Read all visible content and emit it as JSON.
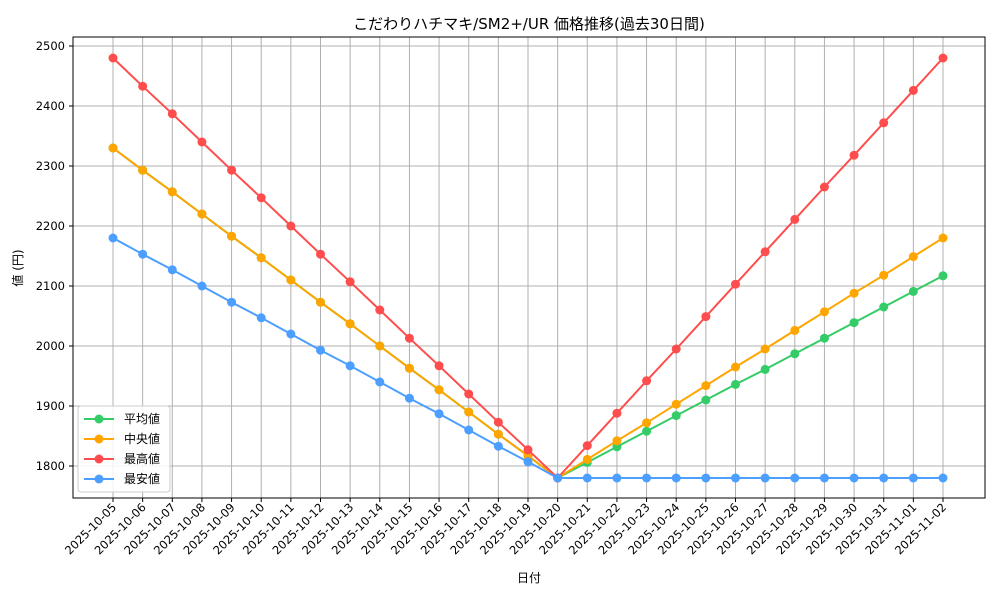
{
  "chart_data": {
    "type": "line",
    "title": "こだわりハチマキ/SM2+/UR 価格推移(過去30日間)",
    "xlabel": "日付",
    "ylabel": "値 (円)",
    "ylim": [
      1748,
      2517
    ],
    "yticks": [
      1800,
      1900,
      2000,
      2100,
      2200,
      2300,
      2400,
      2500
    ],
    "grid": true,
    "legend_position": "lower left",
    "x": [
      "2025-10-05",
      "2025-10-06",
      "2025-10-07",
      "2025-10-08",
      "2025-10-09",
      "2025-10-10",
      "2025-10-11",
      "2025-10-12",
      "2025-10-13",
      "2025-10-14",
      "2025-10-15",
      "2025-10-16",
      "2025-10-17",
      "2025-10-18",
      "2025-10-19",
      "2025-10-20",
      "2025-10-21",
      "2025-10-22",
      "2025-10-23",
      "2025-10-24",
      "2025-10-25",
      "2025-10-26",
      "2025-10-27",
      "2025-10-28",
      "2025-10-29",
      "2025-10-30",
      "2025-10-31",
      "2025-11-01",
      "2025-11-02"
    ],
    "series": [
      {
        "name": "平均値",
        "color": "#33cc66",
        "values": [
          2330,
          2293,
          2257,
          2220,
          2183,
          2147,
          2110,
          2073,
          2037,
          2000,
          1963,
          1927,
          1890,
          1853,
          1817,
          1780,
          1806,
          1832,
          1858,
          1884,
          1910,
          1936,
          1961,
          1987,
          2013,
          2039,
          2065,
          2091,
          2117
        ]
      },
      {
        "name": "中央値",
        "color": "#ffa500",
        "values": [
          2330,
          2293,
          2257,
          2220,
          2183,
          2147,
          2110,
          2073,
          2037,
          2000,
          1963,
          1927,
          1890,
          1853,
          1817,
          1780,
          1811,
          1842,
          1872,
          1903,
          1934,
          1965,
          1995,
          2026,
          2057,
          2088,
          2118,
          2149,
          2180
        ]
      },
      {
        "name": "最高値",
        "color": "#ff4d4d",
        "values": [
          2480,
          2433,
          2387,
          2340,
          2293,
          2247,
          2200,
          2153,
          2107,
          2060,
          2013,
          1967,
          1920,
          1873,
          1827,
          1780,
          1834,
          1888,
          1942,
          1995,
          2049,
          2103,
          2157,
          2211,
          2265,
          2318,
          2372,
          2426,
          2480
        ]
      },
      {
        "name": "最安値",
        "color": "#4d9fff",
        "values": [
          2180,
          2153,
          2127,
          2100,
          2073,
          2047,
          2020,
          1993,
          1967,
          1940,
          1913,
          1887,
          1860,
          1833,
          1807,
          1780,
          1780,
          1780,
          1780,
          1780,
          1780,
          1780,
          1780,
          1780,
          1780,
          1780,
          1780,
          1780,
          1780
        ]
      }
    ]
  }
}
